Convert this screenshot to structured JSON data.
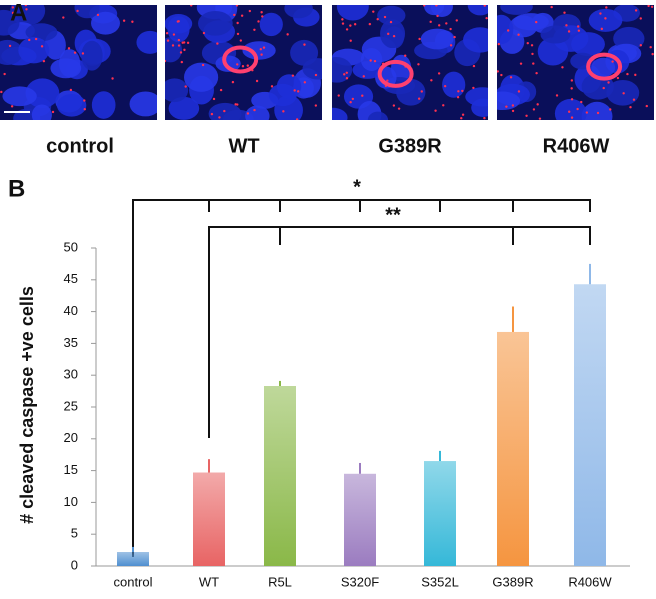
{
  "figure": {
    "panel_labels": [
      "A",
      "B"
    ],
    "image_captions": [
      "control",
      "WT",
      "G389R",
      "R406W"
    ]
  },
  "chart_data": {
    "type": "bar",
    "ylabel": "# cleaved caspase +ve cells",
    "categories": [
      "control",
      "WT",
      "R5L",
      "S320F",
      "S352L",
      "G389R",
      "R406W"
    ],
    "values": [
      2.2,
      14.7,
      28.3,
      14.5,
      16.5,
      36.8,
      44.3
    ],
    "errors": [
      0.8,
      2.1,
      0.8,
      1.7,
      1.6,
      4.0,
      3.2
    ],
    "colors": [
      "#4f8fd0",
      "#e86464",
      "#8ab848",
      "#9b7cc0",
      "#35b8d8",
      "#f59540",
      "#8fb8e8"
    ],
    "ylim": [
      0,
      50
    ],
    "yticks": [
      0,
      5,
      10,
      15,
      20,
      25,
      30,
      35,
      40,
      45,
      50
    ],
    "annotations": [
      "*",
      "**"
    ]
  }
}
